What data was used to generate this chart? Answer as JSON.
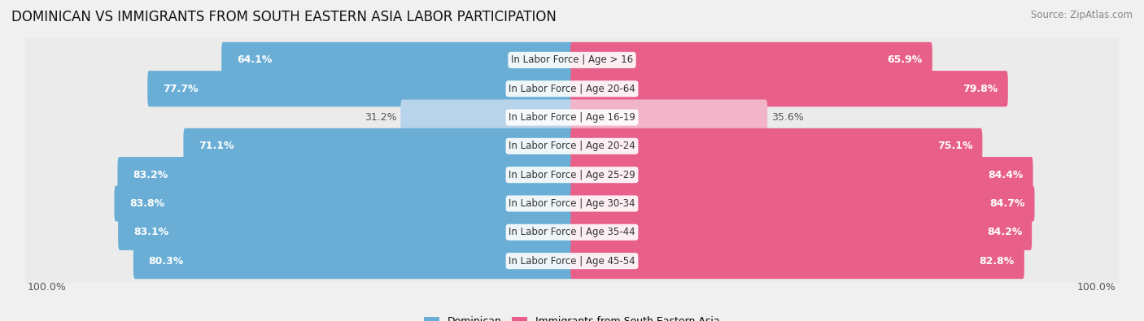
{
  "title": "DOMINICAN VS IMMIGRANTS FROM SOUTH EASTERN ASIA LABOR PARTICIPATION",
  "source": "Source: ZipAtlas.com",
  "categories": [
    "In Labor Force | Age > 16",
    "In Labor Force | Age 20-64",
    "In Labor Force | Age 16-19",
    "In Labor Force | Age 20-24",
    "In Labor Force | Age 25-29",
    "In Labor Force | Age 30-34",
    "In Labor Force | Age 35-44",
    "In Labor Force | Age 45-54"
  ],
  "dominican_values": [
    64.1,
    77.7,
    31.2,
    71.1,
    83.2,
    83.8,
    83.1,
    80.3
  ],
  "immigrant_values": [
    65.9,
    79.8,
    35.6,
    75.1,
    84.4,
    84.7,
    84.2,
    82.8
  ],
  "dominican_color": "#6aaed6",
  "dominican_color_light": "#b8d4ea",
  "immigrant_color": "#e8608a",
  "immigrant_color_light": "#f2b4c8",
  "label_color_white": "#ffffff",
  "label_color_dark": "#555555",
  "bg_color": "#f0f0f0",
  "bar_bg_color": "#e0e0e0",
  "row_bg_color": "#ebebeb",
  "max_value": 100.0,
  "legend_dominican": "Dominican",
  "legend_immigrant": "Immigrants from South Eastern Asia",
  "title_fontsize": 12,
  "source_fontsize": 8.5,
  "axis_label_fontsize": 9,
  "bar_label_fontsize": 9,
  "category_fontsize": 8.5,
  "small_threshold": 40
}
